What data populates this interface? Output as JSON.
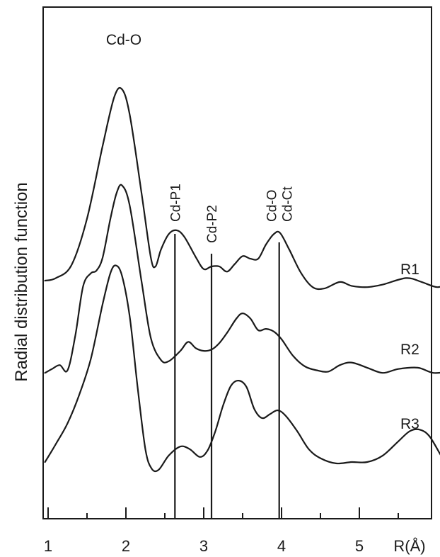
{
  "chart_data": {
    "type": "line",
    "xlabel": "R(Å)",
    "ylabel": "Radial distribution function",
    "xlim": [
      0.95,
      6.15
    ],
    "x_ticks": [
      1,
      2,
      3,
      4,
      5
    ],
    "x_minor_ticks": [
      1.5,
      2.5,
      3.5,
      4.5,
      5.5
    ],
    "peak_label": "Cd-O",
    "markers": [
      {
        "label": "Cd-P1",
        "x": 2.63
      },
      {
        "label": "Cd-P2",
        "x": 3.1
      },
      {
        "label": "Cd-O\nCd-Ct",
        "x": 3.97
      }
    ],
    "series": [
      {
        "name": "R1",
        "points": [
          [
            0.96,
            0.6
          ],
          [
            1.1,
            0.7
          ],
          [
            1.3,
            1.2
          ],
          [
            1.5,
            3.0
          ],
          [
            1.7,
            5.8
          ],
          [
            1.85,
            7.7
          ],
          [
            1.95,
            8.0
          ],
          [
            2.05,
            7.0
          ],
          [
            2.2,
            4.0
          ],
          [
            2.32,
            1.5
          ],
          [
            2.38,
            1.15
          ],
          [
            2.45,
            1.8
          ],
          [
            2.55,
            2.4
          ],
          [
            2.65,
            2.55
          ],
          [
            2.75,
            2.3
          ],
          [
            2.9,
            1.5
          ],
          [
            3.0,
            1.05
          ],
          [
            3.1,
            1.15
          ],
          [
            3.2,
            1.15
          ],
          [
            3.3,
            0.95
          ],
          [
            3.4,
            1.25
          ],
          [
            3.5,
            1.55
          ],
          [
            3.6,
            1.45
          ],
          [
            3.7,
            1.45
          ],
          [
            3.8,
            2.0
          ],
          [
            3.9,
            2.4
          ],
          [
            3.98,
            2.45
          ],
          [
            4.1,
            1.8
          ],
          [
            4.25,
            0.9
          ],
          [
            4.4,
            0.35
          ],
          [
            4.55,
            0.3
          ],
          [
            4.75,
            0.55
          ],
          [
            4.9,
            0.4
          ],
          [
            5.1,
            0.35
          ],
          [
            5.3,
            0.45
          ],
          [
            5.6,
            0.7
          ],
          [
            5.8,
            0.55
          ],
          [
            6.0,
            0.35
          ],
          [
            6.15,
            0.5
          ]
        ]
      },
      {
        "name": "R2",
        "points": [
          [
            0.96,
            0.05
          ],
          [
            1.05,
            0.2
          ],
          [
            1.15,
            0.35
          ],
          [
            1.25,
            0.15
          ],
          [
            1.35,
            1.5
          ],
          [
            1.45,
            3.4
          ],
          [
            1.55,
            3.9
          ],
          [
            1.62,
            4.0
          ],
          [
            1.7,
            4.5
          ],
          [
            1.8,
            6.0
          ],
          [
            1.88,
            7.0
          ],
          [
            1.95,
            7.3
          ],
          [
            2.05,
            6.5
          ],
          [
            2.2,
            3.6
          ],
          [
            2.32,
            1.4
          ],
          [
            2.45,
            0.55
          ],
          [
            2.55,
            0.5
          ],
          [
            2.7,
            0.9
          ],
          [
            2.8,
            1.25
          ],
          [
            2.9,
            1.0
          ],
          [
            3.0,
            0.9
          ],
          [
            3.1,
            0.95
          ],
          [
            3.2,
            1.2
          ],
          [
            3.3,
            1.6
          ],
          [
            3.42,
            2.15
          ],
          [
            3.5,
            2.35
          ],
          [
            3.6,
            2.15
          ],
          [
            3.7,
            1.7
          ],
          [
            3.8,
            1.75
          ],
          [
            3.9,
            1.65
          ],
          [
            4.0,
            1.35
          ],
          [
            4.15,
            0.7
          ],
          [
            4.3,
            0.3
          ],
          [
            4.45,
            0.15
          ],
          [
            4.6,
            0.1
          ],
          [
            4.75,
            0.35
          ],
          [
            4.9,
            0.45
          ],
          [
            5.1,
            0.25
          ],
          [
            5.3,
            0.05
          ],
          [
            5.5,
            0.2
          ],
          [
            5.75,
            0.25
          ],
          [
            5.95,
            0.05
          ],
          [
            6.15,
            0.1
          ]
        ]
      },
      {
        "name": "R3",
        "points": [
          [
            0.96,
            0.3
          ],
          [
            1.1,
            1.0
          ],
          [
            1.25,
            1.8
          ],
          [
            1.4,
            2.9
          ],
          [
            1.55,
            4.3
          ],
          [
            1.7,
            6.4
          ],
          [
            1.8,
            7.6
          ],
          [
            1.87,
            7.9
          ],
          [
            1.95,
            7.5
          ],
          [
            2.05,
            5.9
          ],
          [
            2.15,
            3.2
          ],
          [
            2.25,
            0.8
          ],
          [
            2.33,
            0.05
          ],
          [
            2.42,
            0.0
          ],
          [
            2.55,
            0.55
          ],
          [
            2.7,
            0.9
          ],
          [
            2.82,
            0.8
          ],
          [
            2.95,
            0.5
          ],
          [
            3.05,
            0.75
          ],
          [
            3.15,
            1.5
          ],
          [
            3.25,
            2.5
          ],
          [
            3.35,
            3.25
          ],
          [
            3.45,
            3.45
          ],
          [
            3.55,
            3.2
          ],
          [
            3.65,
            2.35
          ],
          [
            3.75,
            2.0
          ],
          [
            3.85,
            2.15
          ],
          [
            3.95,
            2.3
          ],
          [
            4.05,
            2.1
          ],
          [
            4.2,
            1.5
          ],
          [
            4.35,
            0.8
          ],
          [
            4.5,
            0.45
          ],
          [
            4.7,
            0.25
          ],
          [
            4.9,
            0.3
          ],
          [
            5.1,
            0.3
          ],
          [
            5.3,
            0.55
          ],
          [
            5.5,
            1.1
          ],
          [
            5.65,
            1.5
          ],
          [
            5.78,
            1.55
          ],
          [
            5.9,
            1.3
          ],
          [
            6.05,
            0.55
          ],
          [
            6.15,
            0.1
          ]
        ]
      }
    ]
  }
}
